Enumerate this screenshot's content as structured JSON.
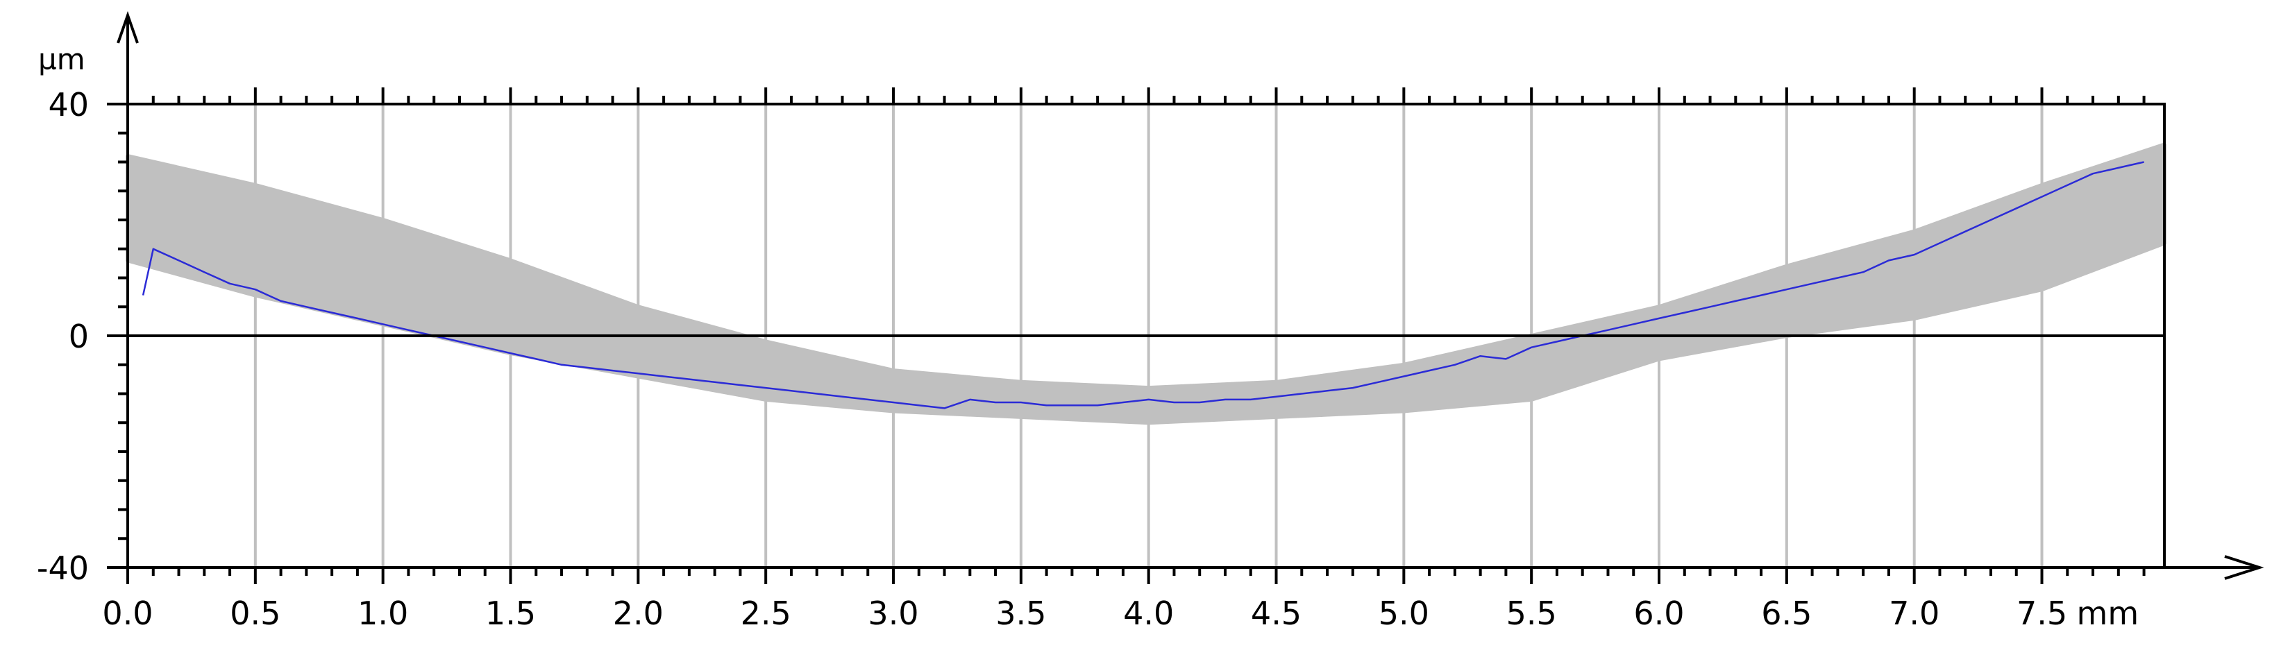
{
  "chart_data": {
    "type": "line",
    "x_unit": "mm",
    "y_unit": "µm",
    "xlim": [
      0,
      7.98
    ],
    "ylim": [
      -40,
      40
    ],
    "x_ticks": [
      "0.0",
      "0.5",
      "1.0",
      "1.5",
      "2.0",
      "2.5",
      "3.0",
      "3.5",
      "4.0",
      "4.5",
      "5.0",
      "5.5",
      "6.0",
      "6.5",
      "7.0",
      "7.5"
    ],
    "y_ticks": [
      "40",
      "0",
      "-40"
    ],
    "grid": "vertical",
    "zero_line": true,
    "colors": {
      "series": "#2b2bd6",
      "band": "#c0c0c0",
      "grid": "#c0c0c0",
      "axis": "#000000"
    },
    "band": {
      "x": [
        0.0,
        0.5,
        1.0,
        1.5,
        2.0,
        2.5,
        3.0,
        3.5,
        4.0,
        4.5,
        5.0,
        5.5,
        6.0,
        6.5,
        7.0,
        7.5,
        7.98
      ],
      "upper": [
        31,
        26,
        20,
        13,
        5,
        -1,
        -6,
        -8,
        -9,
        -8,
        -5,
        0,
        5,
        12,
        18,
        26,
        33
      ],
      "lower": [
        13,
        7,
        2,
        -3,
        -7,
        -11,
        -13,
        -14,
        -15,
        -14,
        -13,
        -11,
        -4,
        0,
        3,
        8,
        16
      ]
    },
    "series": [
      {
        "x": [
          0.06,
          0.1,
          0.2,
          0.3,
          0.4,
          0.5,
          0.6,
          0.7,
          0.8,
          0.9,
          1.0,
          1.1,
          1.2,
          1.3,
          1.4,
          1.5,
          1.6,
          1.7,
          1.8,
          1.9,
          2.0,
          2.1,
          2.2,
          2.3,
          2.4,
          2.5,
          2.6,
          2.7,
          2.8,
          2.9,
          3.0,
          3.1,
          3.2,
          3.3,
          3.4,
          3.5,
          3.6,
          3.7,
          3.8,
          3.9,
          4.0,
          4.1,
          4.2,
          4.3,
          4.4,
          4.5,
          4.6,
          4.7,
          4.8,
          4.9,
          5.0,
          5.1,
          5.2,
          5.3,
          5.4,
          5.5,
          5.6,
          5.7,
          5.8,
          5.9,
          6.0,
          6.1,
          6.2,
          6.3,
          6.4,
          6.5,
          6.6,
          6.7,
          6.8,
          6.9,
          7.0,
          7.1,
          7.2,
          7.3,
          7.4,
          7.5,
          7.6,
          7.7,
          7.8,
          7.9
        ],
        "y": [
          7,
          15,
          13,
          11,
          9,
          8,
          6,
          5,
          4,
          3,
          2,
          1,
          0,
          -1,
          -2,
          -3,
          -4,
          -5,
          -5.5,
          -6,
          -6.5,
          -7,
          -7.5,
          -8,
          -8.5,
          -9,
          -9.5,
          -10,
          -10.5,
          -11,
          -11.5,
          -12,
          -12.5,
          -11,
          -11.5,
          -11.5,
          -12,
          -12,
          -12,
          -11.5,
          -11,
          -11.5,
          -11.5,
          -11,
          -11,
          -10.5,
          -10,
          -9.5,
          -9,
          -8,
          -7,
          -6,
          -5,
          -3.5,
          -4,
          -2,
          -1,
          0,
          1,
          2,
          3,
          4,
          5,
          6,
          7,
          8,
          9,
          10,
          11,
          13,
          14,
          16,
          18,
          20,
          22,
          24,
          26,
          28,
          29,
          30
        ]
      }
    ]
  }
}
